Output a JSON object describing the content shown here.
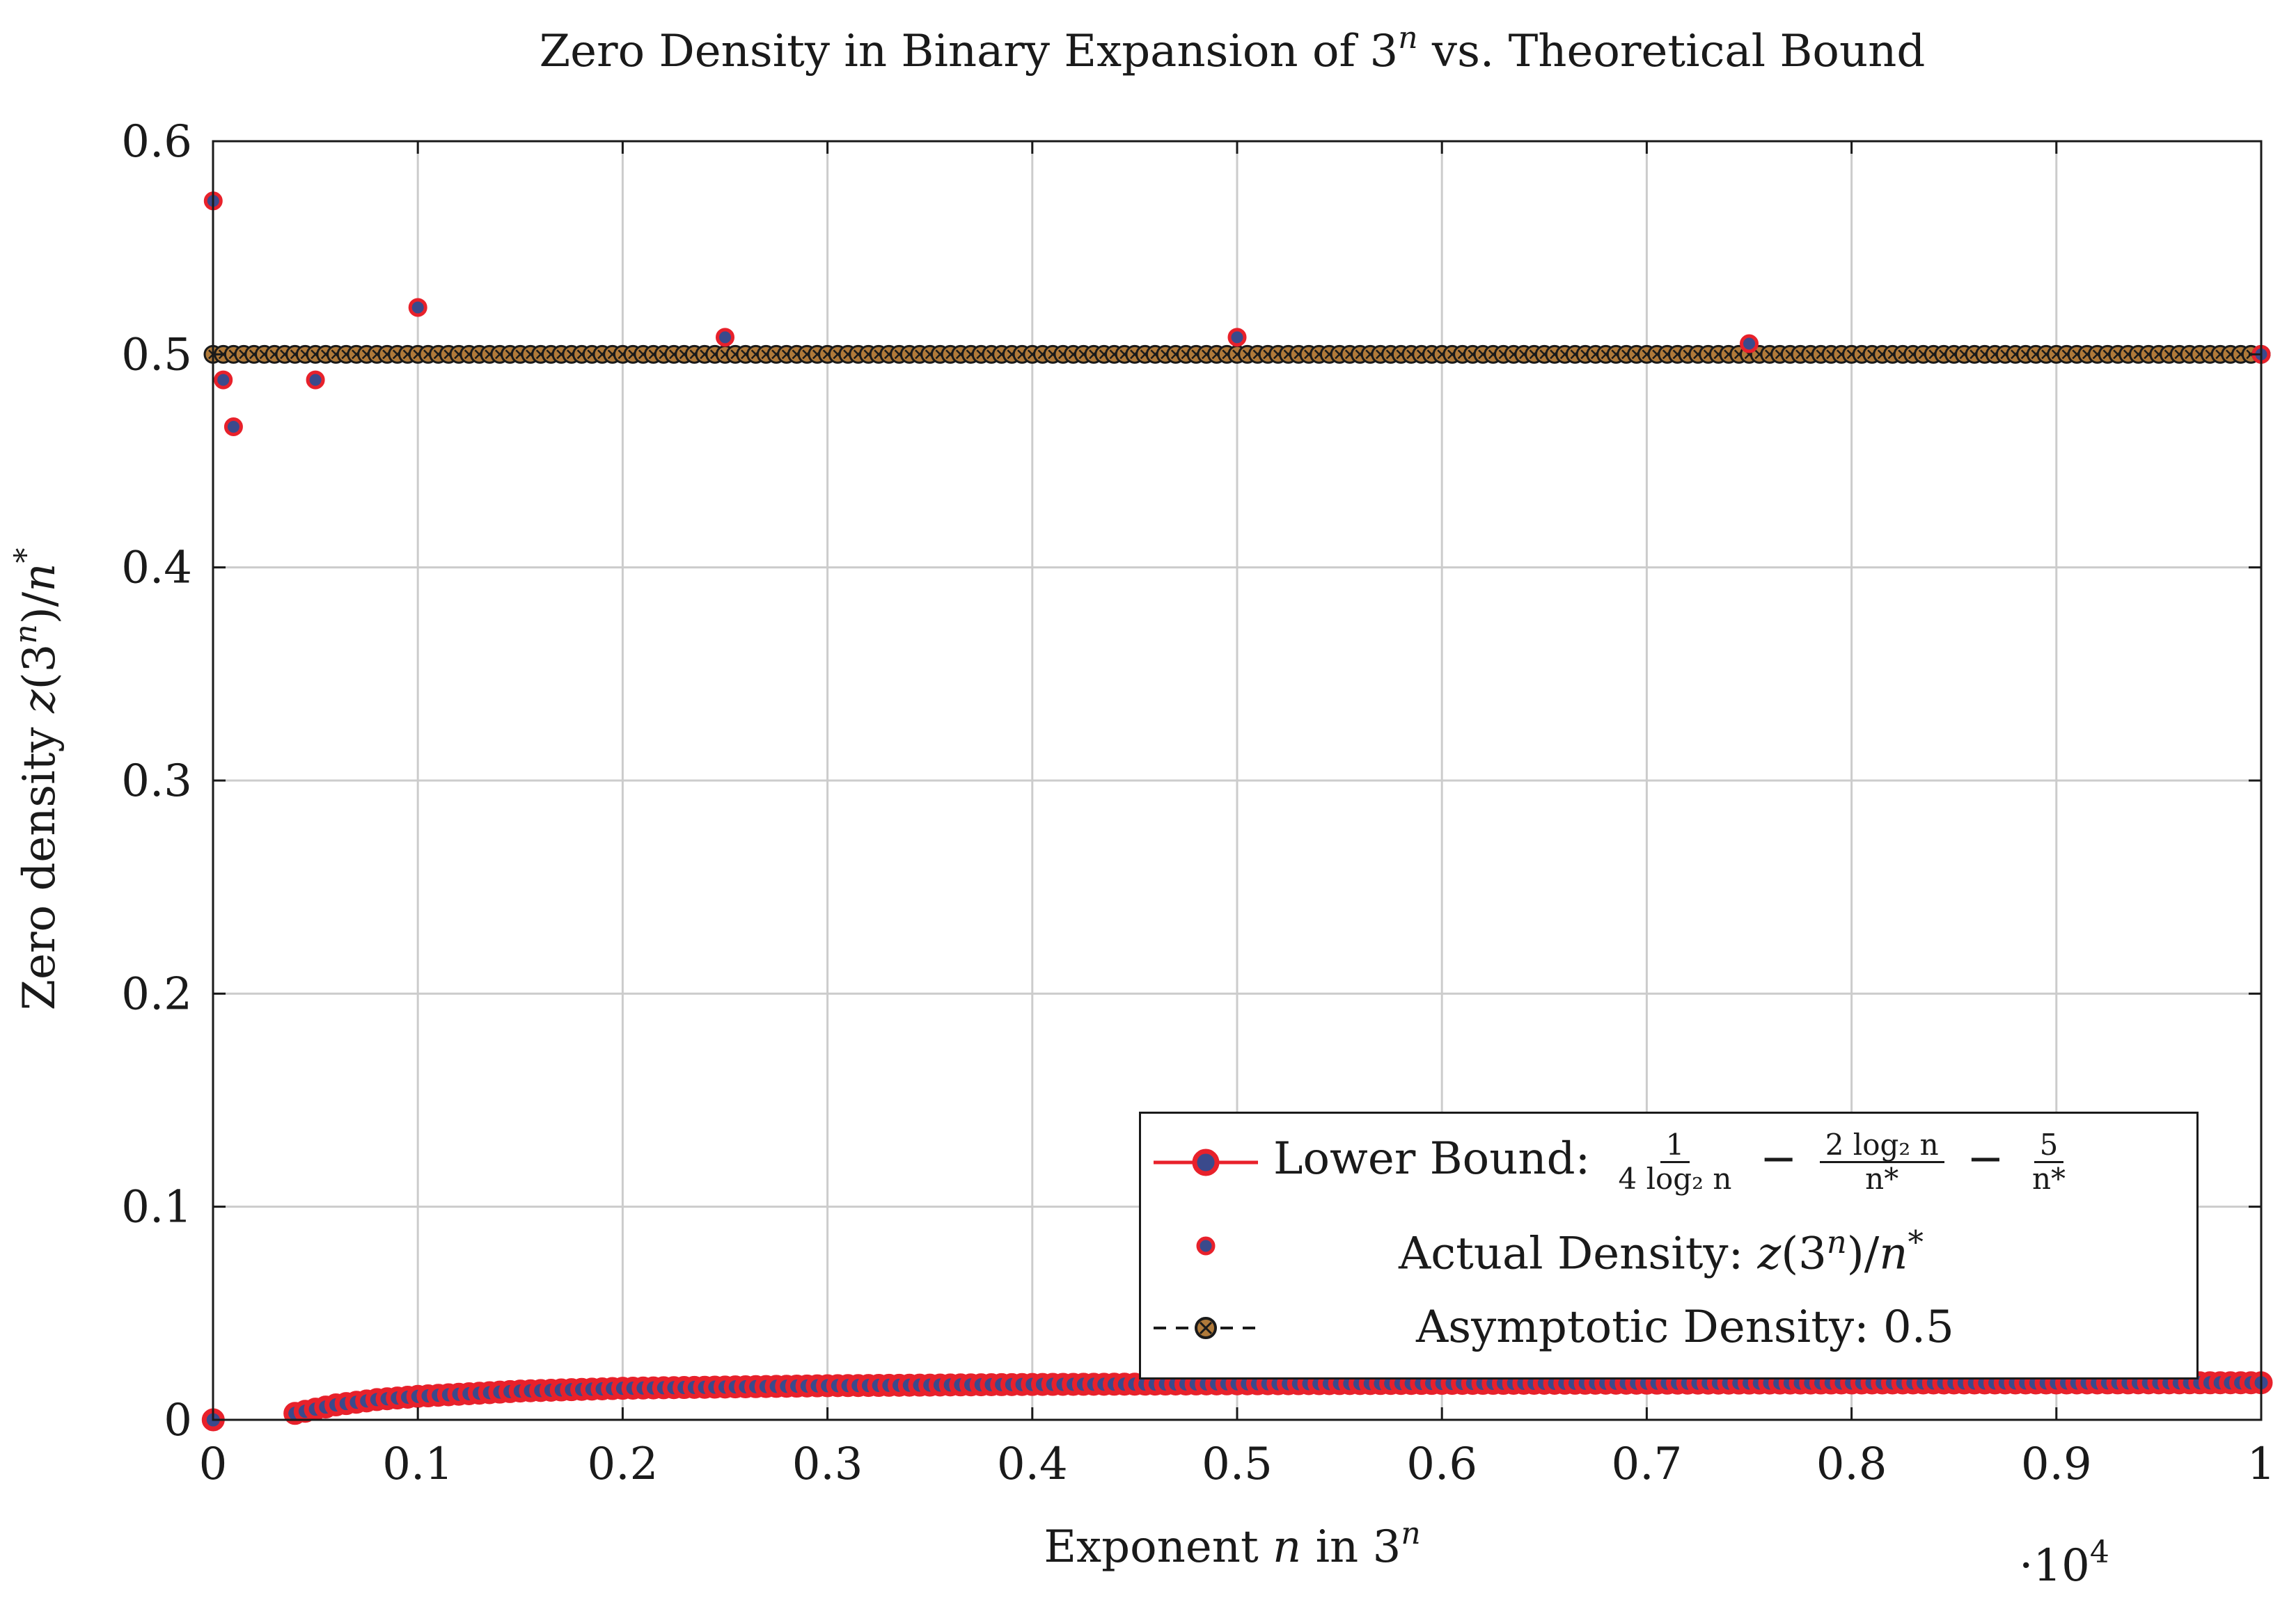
{
  "chart_data": {
    "type": "scatter",
    "title": "Zero Density in Binary Expansion of 3^n vs. Theoretical Bound",
    "title_parts": {
      "base": "Zero Density in Binary Expansion of 3",
      "sup": "n",
      "rest": " vs. Theoretical Bound"
    },
    "xlabel": "Exponent n in 3^n",
    "xlabel_parts": {
      "pre": "Exponent ",
      "var": "n",
      "mid": " in 3",
      "sup": "n"
    },
    "ylabel": "Zero density z(3^n)/n*",
    "ylabel_parts": {
      "pre": "Zero density ",
      "z": "z",
      "open": "(3",
      "sup": "n",
      "close": ")/",
      "n": "n",
      "star": "*"
    },
    "x_multiplier": "·10^4",
    "x_multiplier_parts": {
      "dot": "·10",
      "sup": "4"
    },
    "xlim": [
      0,
      10000
    ],
    "ylim": [
      0,
      0.6
    ],
    "x_ticks": [
      0,
      1000,
      2000,
      3000,
      4000,
      5000,
      6000,
      7000,
      8000,
      9000,
      10000
    ],
    "x_tick_labels": [
      "0",
      "0.1",
      "0.2",
      "0.3",
      "0.4",
      "0.5",
      "0.6",
      "0.7",
      "0.8",
      "0.9",
      "1"
    ],
    "y_ticks": [
      0,
      0.1,
      0.2,
      0.3,
      0.4,
      0.5,
      0.6
    ],
    "y_tick_labels": [
      "0",
      "0.1",
      "0.2",
      "0.3",
      "0.4",
      "0.5",
      "0.6"
    ],
    "grid": true,
    "legend_position": "bottom-right",
    "series": [
      {
        "name": "Lower Bound: 1/(4 log2 n) − 2 log2 n / n* − 5/n*",
        "kind": "line-markers",
        "color": "#e8212b",
        "marker_fill": "#3a4a8c",
        "points": [
          [
            1,
            0
          ],
          [
            400,
            0.003
          ],
          [
            500,
            0.005
          ],
          [
            600,
            0.007
          ],
          [
            800,
            0.0095
          ],
          [
            1000,
            0.011
          ],
          [
            1500,
            0.0135
          ],
          [
            2000,
            0.0148
          ],
          [
            3000,
            0.016
          ],
          [
            4000,
            0.0166
          ],
          [
            5000,
            0.0169
          ],
          [
            6000,
            0.0171
          ],
          [
            7000,
            0.0172
          ],
          [
            8000,
            0.0173
          ],
          [
            9000,
            0.0173
          ],
          [
            10000,
            0.0174
          ]
        ]
      },
      {
        "name": "Actual Density: z(3^n)/n*",
        "kind": "markers",
        "color": "#e8212b",
        "marker_fill": "#3a4a8c",
        "points": [
          [
            1,
            0.572
          ],
          [
            50,
            0.488
          ],
          [
            100,
            0.466
          ],
          [
            500,
            0.488
          ],
          [
            1000,
            0.522
          ],
          [
            2500,
            0.508
          ],
          [
            5000,
            0.508
          ],
          [
            7500,
            0.505
          ],
          [
            10000,
            0.5
          ]
        ]
      },
      {
        "name": "Asymptotic Density: 0.5",
        "kind": "dashed-markers",
        "color": "#1a1a1a",
        "marker_fill": "#b07a3a",
        "y": 0.5,
        "x_range": [
          0,
          10000
        ]
      }
    ],
    "legend": {
      "lower_bound": {
        "label": "Lower Bound: ",
        "f1_num": "1",
        "f1_den": "4 log₂ n",
        "minus1": " − ",
        "f2_num": "2 log₂ n",
        "f2_den": "n*",
        "minus2": " − ",
        "f3_num": "5",
        "f3_den": "n*"
      },
      "actual": {
        "label": "Actual Density: ",
        "z": "z",
        "open": "(3",
        "sup": "n",
        "close": ")/",
        "n": "n",
        "star": "*"
      },
      "asymptotic": {
        "label": "Asymptotic Density: 0.5"
      }
    }
  }
}
